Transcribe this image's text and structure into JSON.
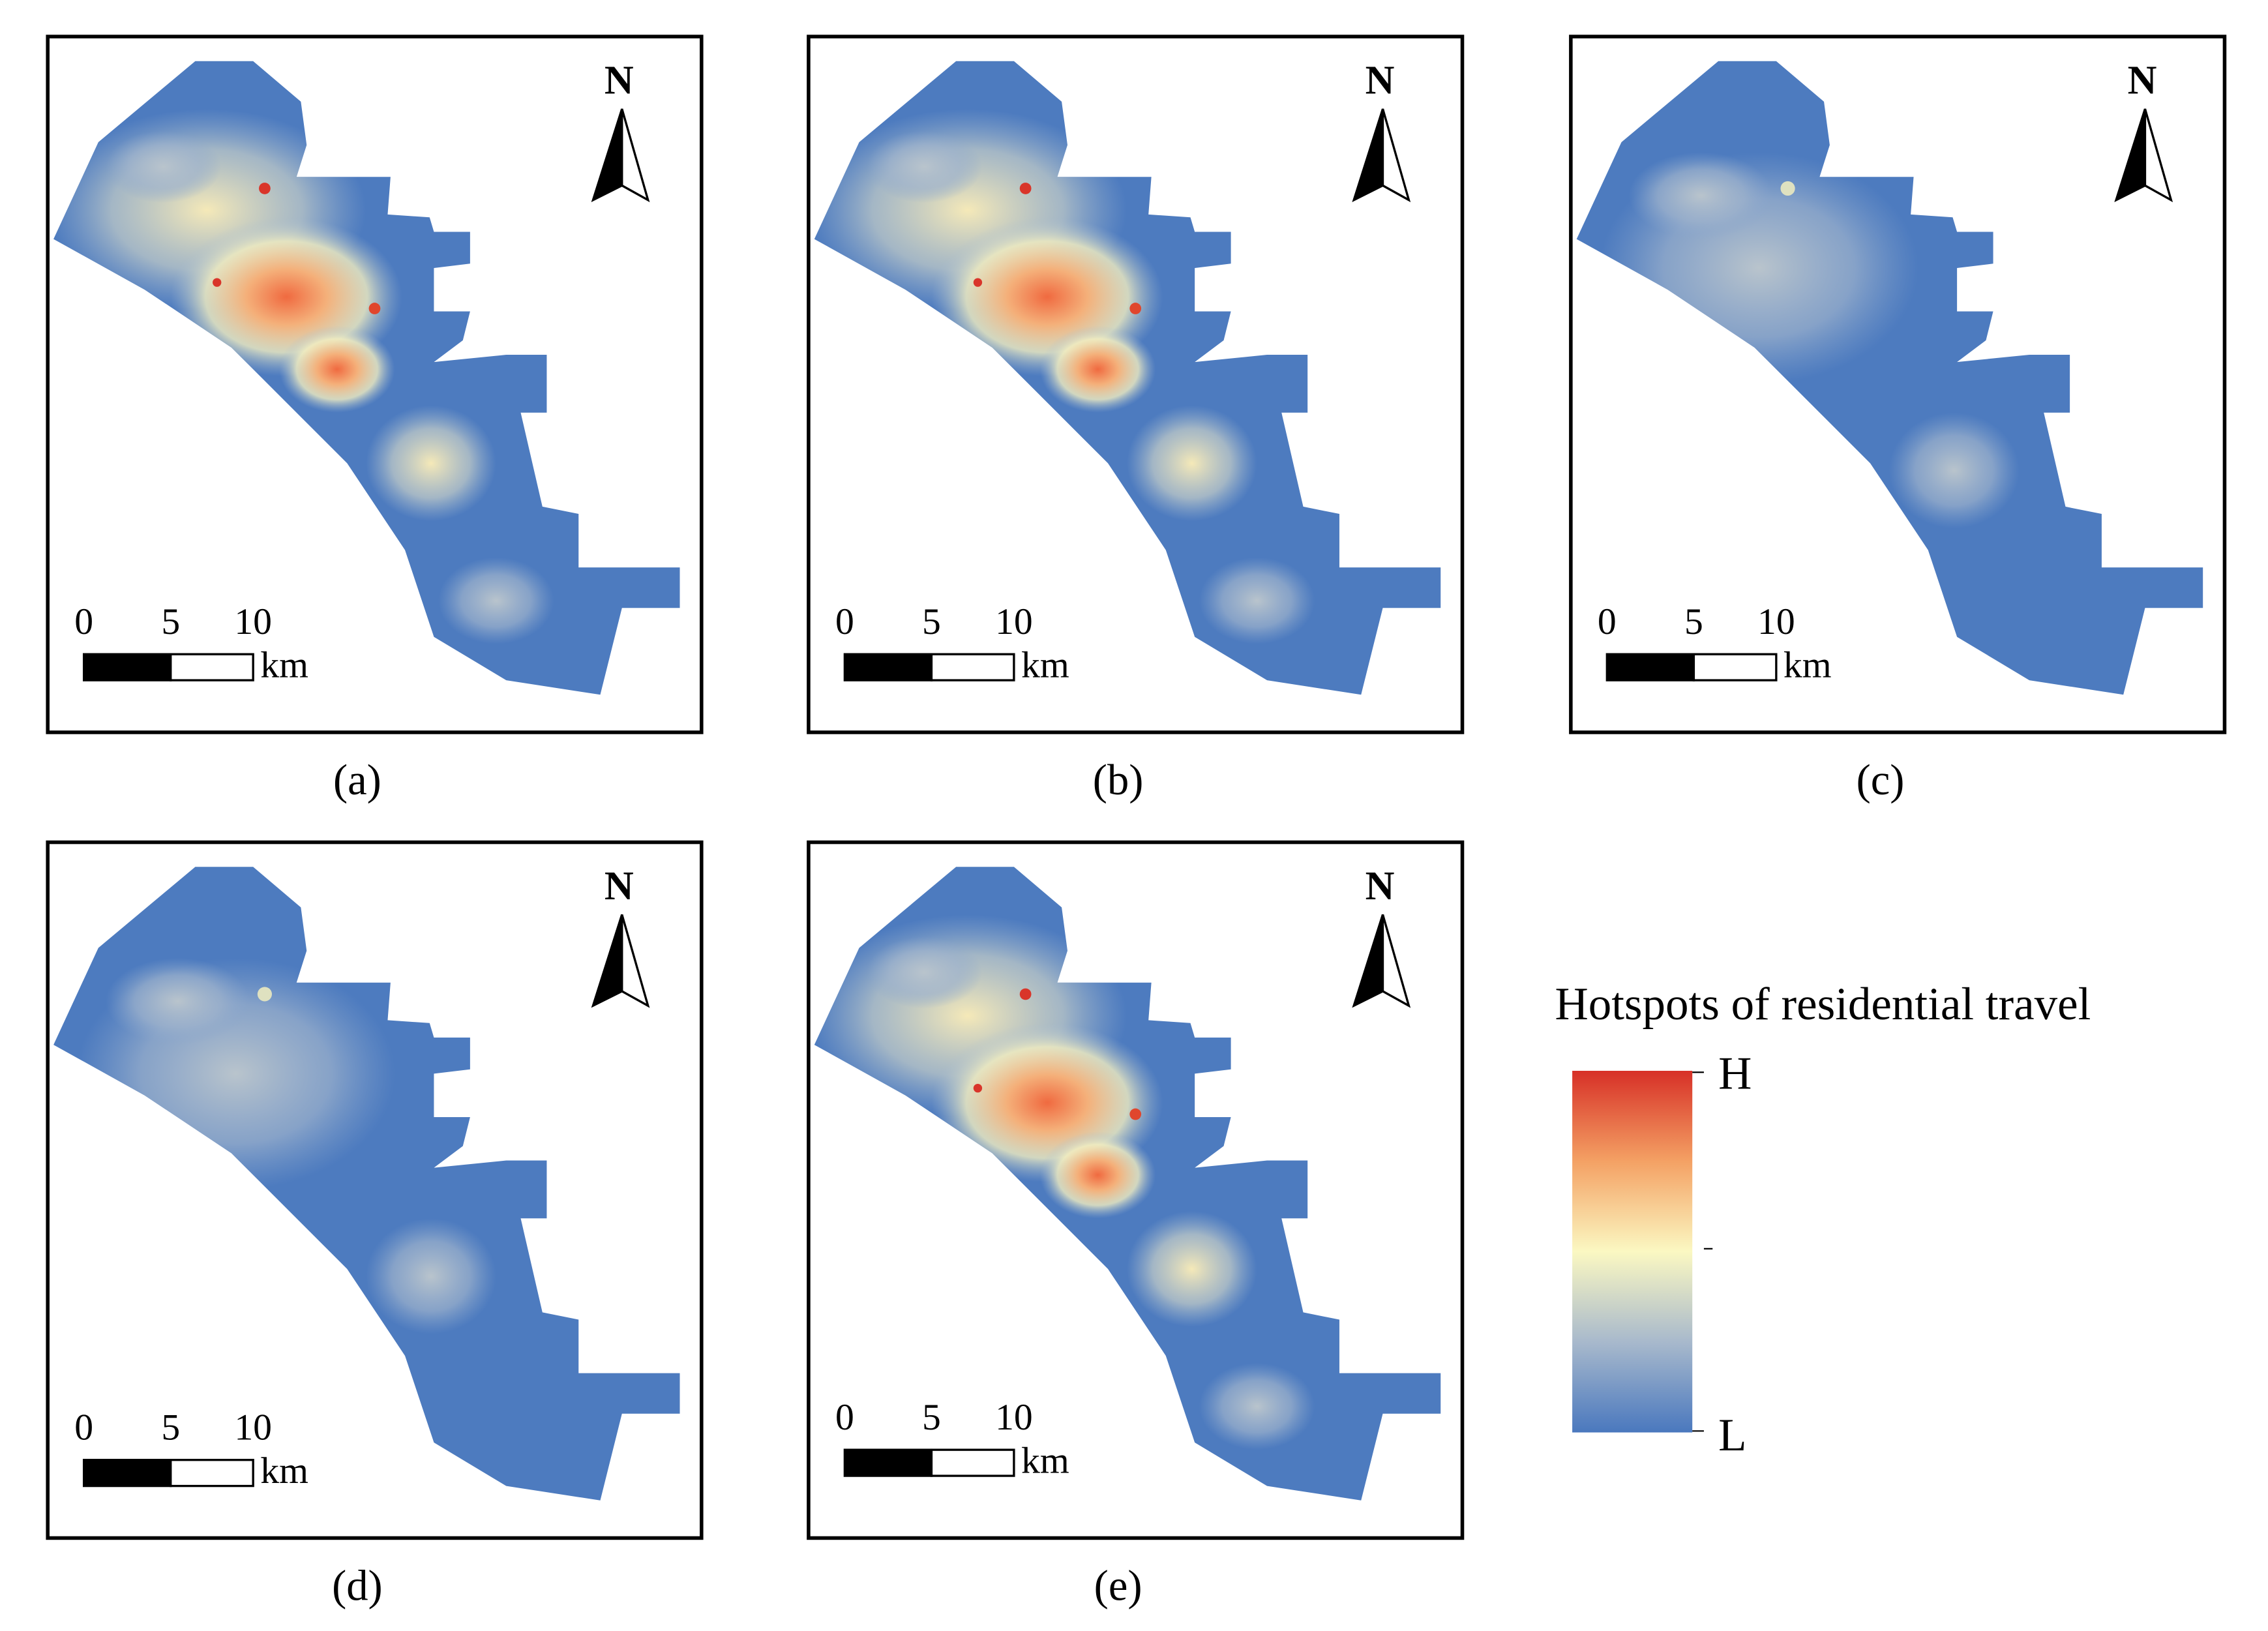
{
  "panels": [
    {
      "label": "(a)",
      "north": "N",
      "scale": {
        "ticks": [
          0,
          5,
          10
        ],
        "unit": "km"
      }
    },
    {
      "label": "(b)",
      "north": "N",
      "scale": {
        "ticks": [
          0,
          5,
          10
        ],
        "unit": "km"
      }
    },
    {
      "label": "(c)",
      "north": "N",
      "scale": {
        "ticks": [
          0,
          5,
          10
        ],
        "unit": "km"
      }
    },
    {
      "label": "(d)",
      "north": "N",
      "scale": {
        "ticks": [
          0,
          5,
          10
        ],
        "unit": "km"
      }
    },
    {
      "label": "(e)",
      "north": "N",
      "scale": {
        "ticks": [
          0,
          5,
          10
        ],
        "unit": "km"
      }
    }
  ],
  "legend": {
    "title": "Hotspots of residential travel",
    "high": "H",
    "low": "L"
  }
}
